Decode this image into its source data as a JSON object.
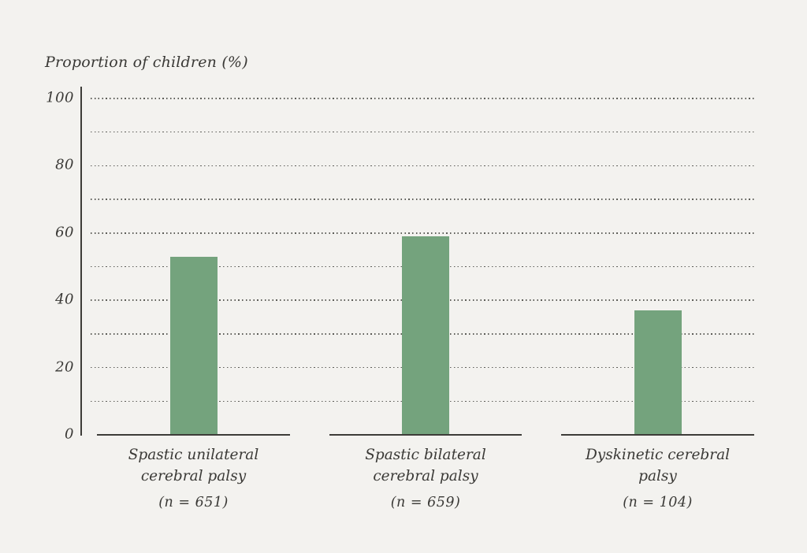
{
  "chart_data": {
    "type": "bar",
    "title": "Proportion of children (%)",
    "ylabel": "Proportion of children (%)",
    "xlabel": "",
    "ylim": [
      0,
      100
    ],
    "yticks": [
      0,
      20,
      40,
      60,
      80,
      100
    ],
    "gridline_values": [
      10,
      20,
      30,
      40,
      50,
      60,
      70,
      80,
      90,
      100
    ],
    "grid_style": "dotted horizontal",
    "legend": "none",
    "categories": [
      {
        "label_lines": [
          "Spastic unilateral",
          "cerebral palsy"
        ],
        "n_label": "(n = 651)"
      },
      {
        "label_lines": [
          "Spastic bilateral",
          "cerebral palsy"
        ],
        "n_label": "(n = 659)"
      },
      {
        "label_lines": [
          "Dyskinetic cerebral",
          "palsy"
        ],
        "n_label": "(n = 104)"
      }
    ],
    "values": [
      53,
      59,
      37
    ],
    "colors": {
      "bar": "#74a37d",
      "background": "#f3f2ef",
      "axis": "#3d3c38",
      "text": "#3a3936",
      "gridline_dots": "#5d5d58"
    }
  }
}
